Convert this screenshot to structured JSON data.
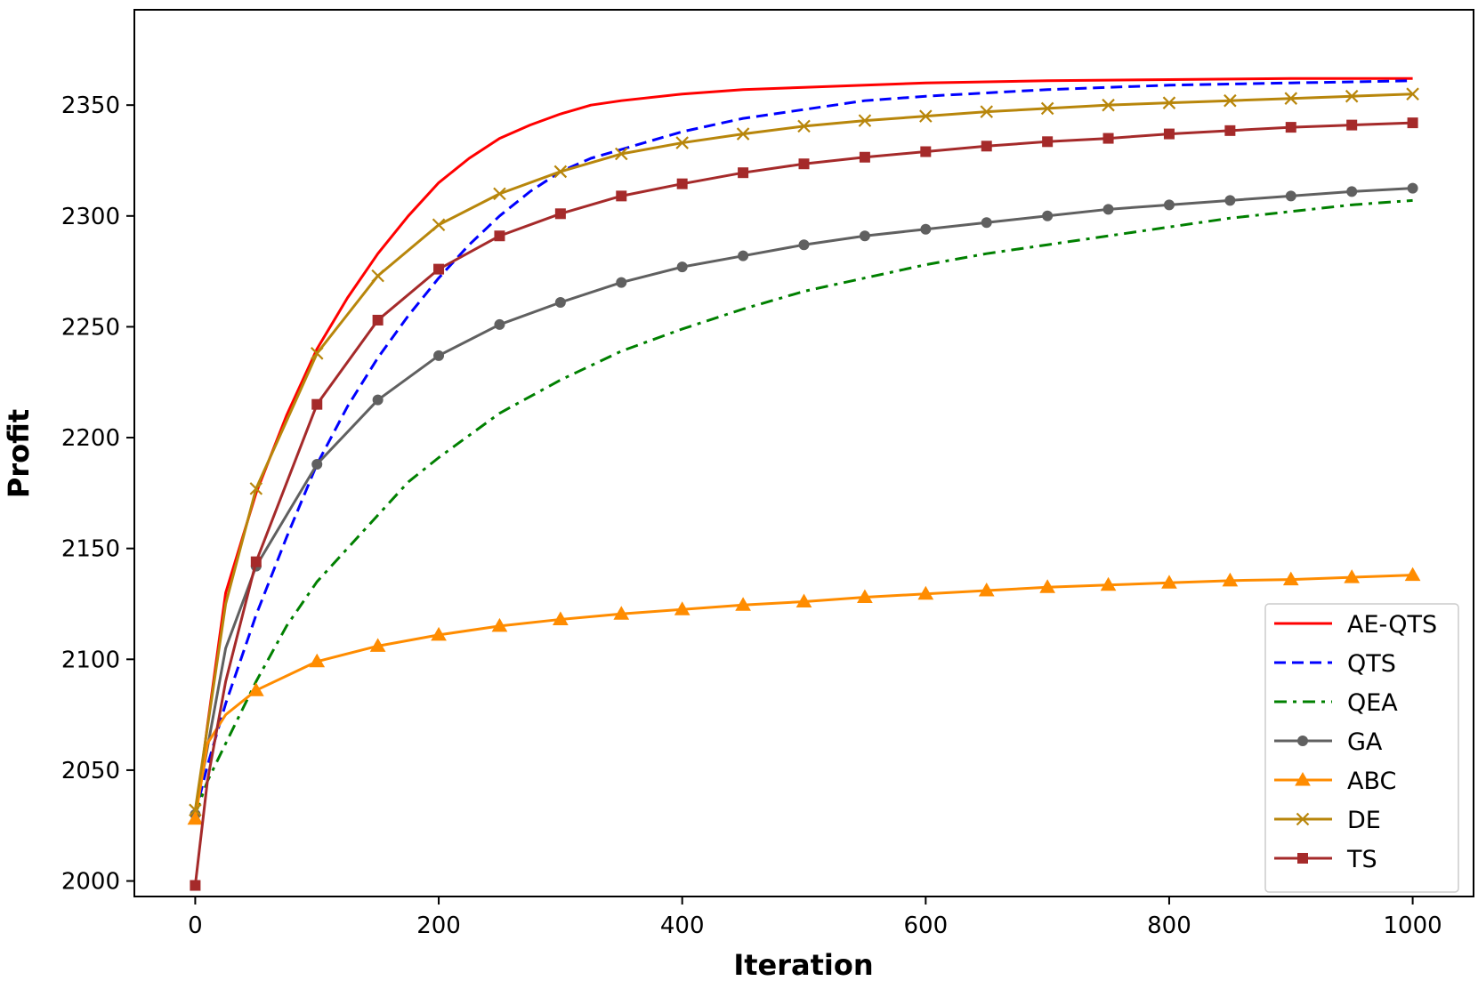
{
  "chart_data": {
    "type": "line",
    "title": "",
    "xlabel": "Iteration",
    "ylabel": "Profit",
    "xlim": [
      -50,
      1050
    ],
    "ylim": [
      1993,
      2393
    ],
    "xticks": [
      0,
      200,
      400,
      600,
      800,
      1000
    ],
    "yticks": [
      2000,
      2050,
      2100,
      2150,
      2200,
      2250,
      2300,
      2350
    ],
    "grid": false,
    "legend_position": "lower-right",
    "series": [
      {
        "name": "AE-QTS",
        "color": "#ff0000",
        "dash": "solid",
        "marker": "none",
        "points": [
          [
            0,
            2028
          ],
          [
            10,
            2070
          ],
          [
            25,
            2130
          ],
          [
            50,
            2175
          ],
          [
            75,
            2210
          ],
          [
            100,
            2240
          ],
          [
            125,
            2263
          ],
          [
            150,
            2283
          ],
          [
            175,
            2300
          ],
          [
            200,
            2315
          ],
          [
            225,
            2326
          ],
          [
            250,
            2335
          ],
          [
            275,
            2341
          ],
          [
            300,
            2346
          ],
          [
            325,
            2350
          ],
          [
            350,
            2352
          ],
          [
            400,
            2355
          ],
          [
            450,
            2357
          ],
          [
            500,
            2358
          ],
          [
            550,
            2359
          ],
          [
            600,
            2360
          ],
          [
            700,
            2361
          ],
          [
            800,
            2361.5
          ],
          [
            900,
            2362
          ],
          [
            1000,
            2362
          ]
        ]
      },
      {
        "name": "QTS",
        "color": "#0000ff",
        "dash": "dashed",
        "marker": "none",
        "points": [
          [
            0,
            2030
          ],
          [
            10,
            2052
          ],
          [
            25,
            2080
          ],
          [
            50,
            2120
          ],
          [
            75,
            2155
          ],
          [
            100,
            2188
          ],
          [
            125,
            2214
          ],
          [
            150,
            2236
          ],
          [
            175,
            2255
          ],
          [
            200,
            2272
          ],
          [
            225,
            2287
          ],
          [
            250,
            2300
          ],
          [
            275,
            2311
          ],
          [
            300,
            2320
          ],
          [
            325,
            2326
          ],
          [
            350,
            2330
          ],
          [
            400,
            2338
          ],
          [
            450,
            2344
          ],
          [
            500,
            2348
          ],
          [
            550,
            2352
          ],
          [
            600,
            2354
          ],
          [
            700,
            2357
          ],
          [
            800,
            2359
          ],
          [
            900,
            2360
          ],
          [
            1000,
            2361
          ]
        ]
      },
      {
        "name": "QEA",
        "color": "#008000",
        "dash": "dashdot",
        "marker": "none",
        "points": [
          [
            0,
            2030
          ],
          [
            10,
            2045
          ],
          [
            25,
            2062
          ],
          [
            50,
            2090
          ],
          [
            75,
            2115
          ],
          [
            100,
            2135
          ],
          [
            125,
            2150
          ],
          [
            150,
            2165
          ],
          [
            175,
            2180
          ],
          [
            200,
            2191
          ],
          [
            250,
            2211
          ],
          [
            300,
            2226
          ],
          [
            350,
            2239
          ],
          [
            400,
            2249
          ],
          [
            450,
            2258
          ],
          [
            500,
            2266
          ],
          [
            550,
            2272
          ],
          [
            600,
            2278
          ],
          [
            650,
            2283
          ],
          [
            700,
            2287
          ],
          [
            750,
            2291
          ],
          [
            800,
            2295
          ],
          [
            850,
            2299
          ],
          [
            900,
            2302
          ],
          [
            950,
            2305
          ],
          [
            1000,
            2307
          ]
        ]
      },
      {
        "name": "GA",
        "color": "#606060",
        "dash": "solid",
        "marker": "circle",
        "points": [
          [
            0,
            2030
          ],
          [
            25,
            2105
          ],
          [
            50,
            2142
          ],
          [
            100,
            2188
          ],
          [
            150,
            2217
          ],
          [
            200,
            2237
          ],
          [
            250,
            2251
          ],
          [
            300,
            2261
          ],
          [
            350,
            2270
          ],
          [
            400,
            2277
          ],
          [
            450,
            2282
          ],
          [
            500,
            2287
          ],
          [
            550,
            2291
          ],
          [
            600,
            2294
          ],
          [
            650,
            2297
          ],
          [
            700,
            2300
          ],
          [
            750,
            2303
          ],
          [
            800,
            2305
          ],
          [
            850,
            2307
          ],
          [
            900,
            2309
          ],
          [
            950,
            2311
          ],
          [
            1000,
            2312.5
          ]
        ]
      },
      {
        "name": "ABC",
        "color": "#ff8c00",
        "dash": "solid",
        "marker": "triangle",
        "points": [
          [
            0,
            2028
          ],
          [
            10,
            2062
          ],
          [
            25,
            2075
          ],
          [
            50,
            2086
          ],
          [
            100,
            2099
          ],
          [
            150,
            2106
          ],
          [
            200,
            2111
          ],
          [
            250,
            2115
          ],
          [
            300,
            2118
          ],
          [
            350,
            2120.5
          ],
          [
            400,
            2122.5
          ],
          [
            450,
            2124.5
          ],
          [
            500,
            2126
          ],
          [
            550,
            2128
          ],
          [
            600,
            2129.5
          ],
          [
            650,
            2131
          ],
          [
            700,
            2132.5
          ],
          [
            750,
            2133.5
          ],
          [
            800,
            2134.5
          ],
          [
            850,
            2135.5
          ],
          [
            900,
            2136
          ],
          [
            950,
            2137
          ],
          [
            1000,
            2138
          ]
        ]
      },
      {
        "name": "DE",
        "color": "#b8860b",
        "dash": "solid",
        "marker": "x",
        "points": [
          [
            0,
            2032
          ],
          [
            25,
            2125
          ],
          [
            50,
            2177
          ],
          [
            100,
            2238
          ],
          [
            150,
            2273
          ],
          [
            200,
            2296
          ],
          [
            250,
            2310
          ],
          [
            300,
            2320
          ],
          [
            350,
            2328
          ],
          [
            400,
            2333
          ],
          [
            450,
            2337
          ],
          [
            500,
            2340.5
          ],
          [
            550,
            2343
          ],
          [
            600,
            2345
          ],
          [
            650,
            2347
          ],
          [
            700,
            2348.5
          ],
          [
            750,
            2350
          ],
          [
            800,
            2351
          ],
          [
            850,
            2352
          ],
          [
            900,
            2353
          ],
          [
            950,
            2354
          ],
          [
            1000,
            2355
          ]
        ]
      },
      {
        "name": "TS",
        "color": "#a52a2a",
        "dash": "solid",
        "marker": "square",
        "points": [
          [
            0,
            1998
          ],
          [
            10,
            2045
          ],
          [
            25,
            2090
          ],
          [
            50,
            2144
          ],
          [
            100,
            2215
          ],
          [
            150,
            2253
          ],
          [
            200,
            2276
          ],
          [
            250,
            2291
          ],
          [
            300,
            2301
          ],
          [
            350,
            2309
          ],
          [
            400,
            2314.5
          ],
          [
            450,
            2319.5
          ],
          [
            500,
            2323.5
          ],
          [
            550,
            2326.5
          ],
          [
            600,
            2329
          ],
          [
            650,
            2331.5
          ],
          [
            700,
            2333.5
          ],
          [
            750,
            2335
          ],
          [
            800,
            2337
          ],
          [
            850,
            2338.5
          ],
          [
            900,
            2340
          ],
          [
            950,
            2341
          ],
          [
            1000,
            2342
          ]
        ]
      }
    ]
  }
}
